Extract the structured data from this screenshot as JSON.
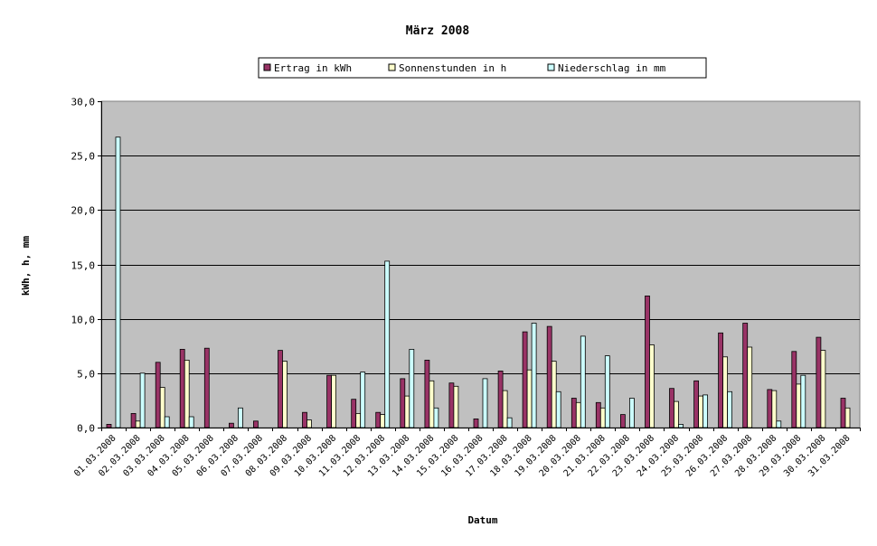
{
  "chart_data": {
    "type": "bar",
    "title": "März 2008",
    "xlabel": "Datum",
    "ylabel": "kWh, h, mm",
    "ylim": [
      0,
      30
    ],
    "yticks": [
      "0,0",
      "5,0",
      "10,0",
      "15,0",
      "20,0",
      "25,0",
      "30,0"
    ],
    "grid": true,
    "legend_position": "top-center",
    "colors": {
      "plot_background": "#c0c0c0",
      "page_background": "#ffffff"
    },
    "categories": [
      "01.03.2008",
      "02.03.2008",
      "03.03.2008",
      "04.03.2008",
      "05.03.2008",
      "06.03.2008",
      "07.03.2008",
      "08.03.2008",
      "09.03.2008",
      "10.03.2008",
      "11.03.2008",
      "12.03.2008",
      "13.03.2008",
      "14.03.2008",
      "15.03.2008",
      "16.03.2008",
      "17.03.2008",
      "18.03.2008",
      "19.03.2008",
      "20.03.2008",
      "21.03.2008",
      "22.03.2008",
      "23.03.2008",
      "24.03.2008",
      "25.03.2008",
      "26.03.2008",
      "27.03.2008",
      "28.03.2008",
      "29.03.2008",
      "30.03.2008",
      "31.03.2008"
    ],
    "series": [
      {
        "name": "Ertrag in kWh",
        "color": "#993366",
        "values": [
          0.3,
          1.3,
          6.0,
          7.2,
          7.3,
          0.4,
          0.6,
          7.1,
          1.4,
          4.8,
          2.6,
          1.4,
          4.5,
          6.2,
          4.1,
          0.8,
          5.2,
          8.8,
          9.3,
          2.7,
          2.3,
          1.2,
          12.1,
          3.6,
          4.3,
          8.7,
          9.6,
          3.5,
          7.0,
          8.3,
          2.7
        ]
      },
      {
        "name": "Sonnenstunden in h",
        "color": "#ffffcc",
        "values": [
          0,
          0.6,
          3.7,
          6.2,
          0,
          0,
          0,
          6.1,
          0.7,
          4.8,
          1.3,
          1.2,
          2.9,
          4.3,
          3.8,
          0,
          3.4,
          5.3,
          6.1,
          2.3,
          1.8,
          0,
          7.6,
          2.4,
          2.9,
          6.5,
          7.4,
          3.4,
          4.0,
          7.1,
          1.8
        ]
      },
      {
        "name": "Niederschlag in mm",
        "color": "#ccffff",
        "values": [
          26.7,
          5.0,
          1.0,
          1.0,
          0,
          1.8,
          0,
          0,
          0,
          0,
          5.1,
          15.3,
          7.2,
          1.8,
          0,
          4.5,
          0.9,
          9.6,
          3.3,
          8.4,
          6.6,
          2.7,
          0,
          0.3,
          3.0,
          3.3,
          0,
          0.6,
          4.8,
          0,
          0
        ]
      }
    ]
  }
}
